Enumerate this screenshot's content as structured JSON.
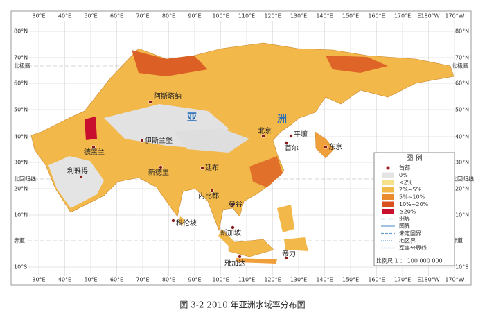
{
  "map": {
    "lon_labels": [
      "30°E",
      "40°E",
      "50°E",
      "60°E",
      "70°E",
      "80°E",
      "90°E",
      "100°E",
      "110°E",
      "120°E",
      "130°E",
      "140°E",
      "150°E",
      "160°E",
      "170°E",
      "E180°W",
      "170°W"
    ],
    "lat_labels": [
      "80°N",
      "70°N",
      "60°N",
      "50°N",
      "40°N",
      "30°N",
      "20°N",
      "10°N",
      "10°S"
    ],
    "lines": {
      "arctic": "北极圈",
      "tropic": "北回归线",
      "equator": "赤道"
    },
    "region_labels": [
      "亚",
      "洲"
    ],
    "cities": [
      {
        "name": "阿斯塔纳"
      },
      {
        "name": "北京"
      },
      {
        "name": "平壤"
      },
      {
        "name": "首尔"
      },
      {
        "name": "东京"
      },
      {
        "name": "德黑兰"
      },
      {
        "name": "利雅得"
      },
      {
        "name": "伊斯兰堡"
      },
      {
        "name": "新德里"
      },
      {
        "name": "廷布"
      },
      {
        "name": "内比都"
      },
      {
        "name": "曼谷"
      },
      {
        "name": "科伦坡"
      },
      {
        "name": "新加坡"
      },
      {
        "name": "雅加达"
      },
      {
        "name": "帝力"
      }
    ],
    "legend": {
      "title": "图  例",
      "items": [
        "首都",
        "0%",
        "<2%",
        "2%~5%",
        "5%~10%",
        "10%~20%",
        "≥20%",
        "洲界",
        "国界",
        "未定国界",
        "地区界",
        "军事分界线"
      ],
      "scale": "比例尺  1 ： 100 000 000"
    }
  },
  "caption": "图 3-2  2010 年亚洲水域率分布图"
}
